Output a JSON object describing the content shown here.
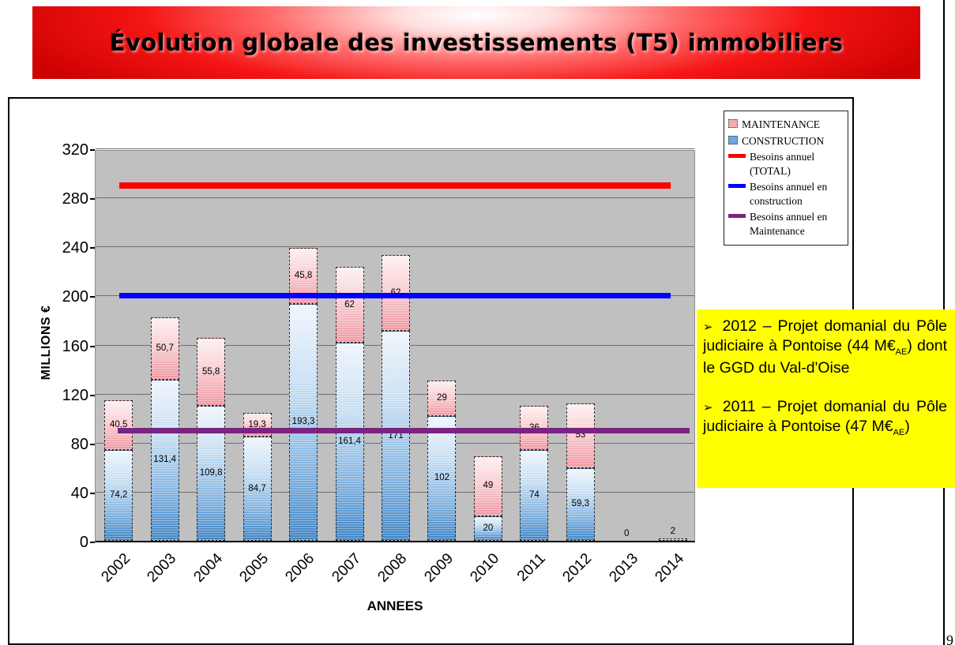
{
  "title": "Évolution globale des investissements (T5) immobiliers",
  "page": {
    "number": "9"
  },
  "legend": {
    "items": [
      {
        "label": "MAINTENANCE",
        "type": "patch",
        "color": "#f4aab2"
      },
      {
        "label": "CONSTRUCTION",
        "type": "patch",
        "color": "#6fa8dc"
      },
      {
        "label": "Besoins annuel (TOTAL)",
        "type": "line",
        "color": "#ff0000"
      },
      {
        "label": "Besoins annuel en construction",
        "type": "line",
        "color": "#0000ff"
      },
      {
        "label": "Besoins annuel en Maintenance",
        "type": "line",
        "color": "#7b2382"
      }
    ]
  },
  "notes": {
    "items": [
      {
        "bullet": "➢",
        "text": "2012 – Projet domanial du Pôle judiciaire à Pontoise (44 M€",
        "sub": "AE",
        "after": ") dont le GGD du Val-d'Oise"
      },
      {
        "bullet": "➢",
        "text": "2011 – Projet domanial du Pôle judiciaire à Pontoise (47 M€",
        "sub": "AE",
        "after": ")"
      }
    ]
  },
  "chart_data": {
    "type": "bar",
    "stacked": true,
    "title": "",
    "xlabel": "ANNEES",
    "ylabel": "MILLIONS €",
    "ylim": [
      0,
      320
    ],
    "ytick_step": 40,
    "grid": true,
    "legend_position": "top-right",
    "categories": [
      "2002",
      "2003",
      "2004",
      "2005",
      "2006",
      "2007",
      "2008",
      "2009",
      "2010",
      "2011",
      "2012",
      "2013",
      "2014"
    ],
    "series": [
      {
        "name": "CONSTRUCTION",
        "values": [
          74.2,
          131.4,
          109.8,
          84.7,
          193.3,
          161.4,
          171,
          102,
          20,
          74,
          59.3,
          0,
          2
        ],
        "labels": [
          "74,2",
          "131,4",
          "109,8",
          "84,7",
          "193,3",
          "161,4",
          "171",
          "102",
          "20",
          "74",
          "59,3",
          "0",
          "2"
        ]
      },
      {
        "name": "MAINTENANCE",
        "values": [
          40.5,
          50.7,
          55.8,
          19.3,
          45.8,
          62,
          62,
          29,
          49,
          36,
          53,
          0,
          0
        ],
        "labels": [
          "40,5",
          "50,7",
          "55,8",
          "19,3",
          "45,8",
          "62",
          "62",
          "29",
          "49",
          "36",
          "53",
          "",
          ""
        ]
      }
    ],
    "lines": [
      {
        "name": "besoins-annuel-total-line",
        "label": "Besoins annuel (TOTAL)",
        "value": 290,
        "color": "#ff0000"
      },
      {
        "name": "besoins-annuel-construction-line",
        "label": "Besoins annuel en construction",
        "value": 200,
        "color": "#0000ff"
      },
      {
        "name": "besoins-annuel-maintenance-line",
        "label": "Besoins annuel en Maintenance",
        "value": 90,
        "color": "#7b2382"
      }
    ]
  }
}
